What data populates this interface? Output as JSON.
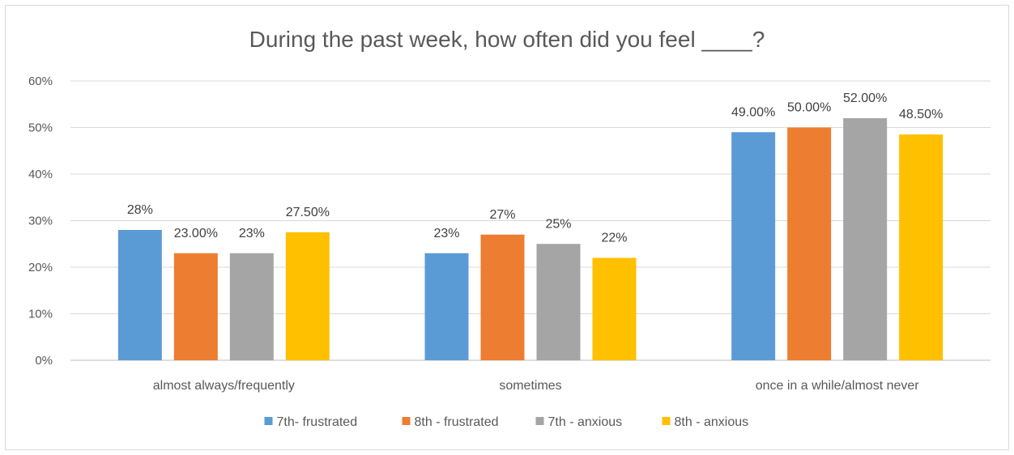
{
  "chart_data": {
    "type": "bar",
    "title": "During the past week, how often did you feel ____?",
    "categories": [
      "almost always/frequently",
      "sometimes",
      "once in a while/almost never"
    ],
    "series": [
      {
        "name": "7th- frustrated",
        "color": "#5b9bd5",
        "values": [
          28,
          23,
          49
        ],
        "labels": [
          "28%",
          "23%",
          "49.00%"
        ]
      },
      {
        "name": "8th - frustrated",
        "color": "#ed7d31",
        "values": [
          23,
          27,
          50
        ],
        "labels": [
          "23.00%",
          "27%",
          "50.00%"
        ]
      },
      {
        "name": "7th - anxious",
        "color": "#a5a5a5",
        "values": [
          23,
          25,
          52
        ],
        "labels": [
          "23%",
          "25%",
          "52.00%"
        ]
      },
      {
        "name": "8th - anxious",
        "color": "#ffc000",
        "values": [
          27.5,
          22,
          48.5
        ],
        "labels": [
          "27.50%",
          "22%",
          "48.50%"
        ]
      }
    ],
    "yticks": [
      "0%",
      "10%",
      "20%",
      "30%",
      "40%",
      "50%",
      "60%"
    ],
    "ylim": [
      0,
      60
    ],
    "grid": true,
    "legend": "bottom"
  }
}
